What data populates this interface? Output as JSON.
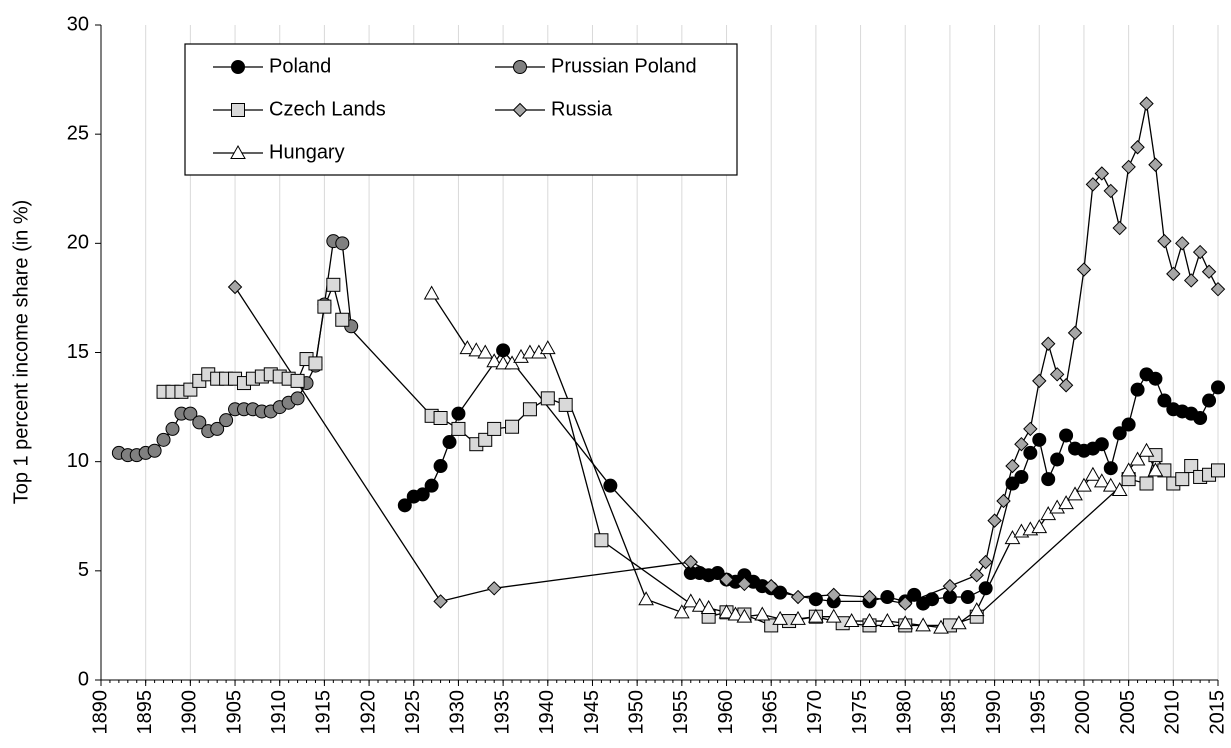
{
  "chart_data": {
    "type": "line",
    "y_label": "Top 1 percent income share (in %)",
    "xlim": [
      1890,
      2015
    ],
    "xticks": [
      1890,
      1895,
      1900,
      1905,
      1910,
      1915,
      1920,
      1925,
      1930,
      1935,
      1940,
      1945,
      1950,
      1955,
      1960,
      1965,
      1970,
      1975,
      1980,
      1985,
      1990,
      1995,
      2000,
      2005,
      2010,
      2015
    ],
    "ylim": [
      0,
      30
    ],
    "yticks": [
      0,
      5,
      10,
      15,
      20,
      25,
      30
    ],
    "grid": "x",
    "legend": "top-left",
    "series": [
      {
        "name": "Poland",
        "color": "#000000",
        "marker": "circle",
        "x": [
          1924,
          1925,
          1926,
          1927,
          1928,
          1929,
          1930,
          1935,
          1947,
          1956,
          1957,
          1958,
          1959,
          1960,
          1961,
          1962,
          1963,
          1964,
          1965,
          1966,
          1970,
          1972,
          1976,
          1978,
          1980,
          1981,
          1982,
          1983,
          1985,
          1987,
          1989,
          1992,
          1993,
          1994,
          1995,
          1996,
          1997,
          1998,
          1999,
          2000,
          2001,
          2002,
          2003,
          2004,
          2005,
          2006,
          2007,
          2008,
          2009,
          2010,
          2011,
          2012,
          2013,
          2014,
          2015
        ],
        "values": [
          8.0,
          8.4,
          8.5,
          8.9,
          9.8,
          10.9,
          12.2,
          15.1,
          8.9,
          4.9,
          4.9,
          4.8,
          4.9,
          4.6,
          4.5,
          4.8,
          4.5,
          4.3,
          4.2,
          4.0,
          3.7,
          3.6,
          3.6,
          3.8,
          3.6,
          3.9,
          3.5,
          3.7,
          3.8,
          3.8,
          4.2,
          9.0,
          9.3,
          10.4,
          11.0,
          9.2,
          10.1,
          11.2,
          10.6,
          10.5,
          10.6,
          10.8,
          9.7,
          11.3,
          11.7,
          13.3,
          14.0,
          13.8,
          12.8,
          12.4,
          12.3,
          12.2,
          12.0,
          12.8,
          13.4
        ]
      },
      {
        "name": "Prussian Poland",
        "color": "#808080",
        "marker": "circle",
        "x": [
          1892,
          1893,
          1894,
          1895,
          1896,
          1897,
          1898,
          1899,
          1900,
          1901,
          1902,
          1903,
          1904,
          1905,
          1906,
          1907,
          1908,
          1909,
          1910,
          1911,
          1912,
          1913,
          1914,
          1915,
          1916,
          1917,
          1918
        ],
        "values": [
          10.4,
          10.3,
          10.3,
          10.4,
          10.5,
          11.0,
          11.5,
          12.2,
          12.2,
          11.8,
          11.4,
          11.5,
          11.9,
          12.4,
          12.4,
          12.4,
          12.3,
          12.3,
          12.5,
          12.7,
          12.9,
          13.6,
          14.4,
          17.2,
          20.1,
          20.0,
          16.2
        ]
      },
      {
        "name": "Czech Lands",
        "color": "#d9d9d9",
        "marker": "square",
        "x": [
          1897,
          1898,
          1899,
          1900,
          1901,
          1902,
          1903,
          1904,
          1905,
          1906,
          1907,
          1908,
          1909,
          1910,
          1911,
          1912,
          1913,
          1914,
          1915,
          1916,
          1917,
          1927,
          1928,
          1930,
          1932,
          1933,
          1934,
          1936,
          1938,
          1940,
          1942,
          1946,
          1958,
          1960,
          1962,
          1965,
          1967,
          1970,
          1973,
          1976,
          1980,
          1985,
          1988,
          2005,
          2007,
          2008,
          2009,
          2010,
          2011,
          2012,
          2013,
          2014,
          2015
        ],
        "values": [
          13.2,
          13.2,
          13.2,
          13.3,
          13.7,
          14.0,
          13.8,
          13.8,
          13.8,
          13.6,
          13.8,
          13.9,
          14.0,
          13.9,
          13.8,
          13.7,
          14.7,
          14.5,
          17.1,
          18.1,
          16.5,
          12.1,
          12.0,
          11.5,
          10.8,
          11.0,
          11.5,
          11.6,
          12.4,
          12.9,
          12.6,
          6.4,
          2.9,
          3.1,
          3.0,
          2.5,
          2.7,
          2.9,
          2.6,
          2.5,
          2.5,
          2.5,
          2.9,
          9.2,
          9.0,
          10.3,
          9.6,
          9.0,
          9.2,
          9.8,
          9.3,
          9.4,
          9.6
        ]
      },
      {
        "name": "Russia",
        "color": "#a6a6a6",
        "marker": "diamond",
        "x": [
          1905,
          1928,
          1934,
          1956,
          1960,
          1962,
          1965,
          1968,
          1972,
          1976,
          1980,
          1985,
          1988,
          1989,
          1990,
          1991,
          1992,
          1993,
          1994,
          1995,
          1996,
          1997,
          1998,
          1999,
          2000,
          2001,
          2002,
          2003,
          2004,
          2005,
          2006,
          2007,
          2008,
          2009,
          2010,
          2011,
          2012,
          2013,
          2014,
          2015
        ],
        "values": [
          18.0,
          3.6,
          4.2,
          5.4,
          4.6,
          4.4,
          4.3,
          3.8,
          3.9,
          3.8,
          3.5,
          4.3,
          4.8,
          5.4,
          7.3,
          8.2,
          9.8,
          10.8,
          11.5,
          13.7,
          15.4,
          14.0,
          13.5,
          15.9,
          18.8,
          22.7,
          23.2,
          22.4,
          20.7,
          23.5,
          24.4,
          26.4,
          23.6,
          20.1,
          18.6,
          20.0,
          18.3,
          19.6,
          18.7,
          17.9
        ]
      },
      {
        "name": "Hungary",
        "color": "#ffffff",
        "marker": "triangle",
        "x": [
          1927,
          1931,
          1932,
          1933,
          1934,
          1935,
          1936,
          1937,
          1938,
          1939,
          1940,
          1951,
          1955,
          1956,
          1957,
          1958,
          1960,
          1961,
          1962,
          1964,
          1966,
          1968,
          1970,
          1972,
          1974,
          1976,
          1978,
          1980,
          1982,
          1984,
          1986,
          1988,
          1992,
          1993,
          1994,
          1995,
          1996,
          1997,
          1998,
          1999,
          2000,
          2001,
          2002,
          2003,
          2004,
          2005,
          2006,
          2007,
          2008
        ],
        "values": [
          17.7,
          15.2,
          15.1,
          15.0,
          14.6,
          14.5,
          14.5,
          14.8,
          15.0,
          15.0,
          15.2,
          3.7,
          3.1,
          3.6,
          3.4,
          3.3,
          3.1,
          3.0,
          2.9,
          3.0,
          2.8,
          2.8,
          2.9,
          2.9,
          2.7,
          2.7,
          2.7,
          2.6,
          2.5,
          2.4,
          2.6,
          3.2,
          6.5,
          6.8,
          6.9,
          7.0,
          7.6,
          7.9,
          8.1,
          8.5,
          8.9,
          9.4,
          9.1,
          8.9,
          8.7,
          9.6,
          10.1,
          10.5,
          9.6
        ]
      }
    ]
  }
}
